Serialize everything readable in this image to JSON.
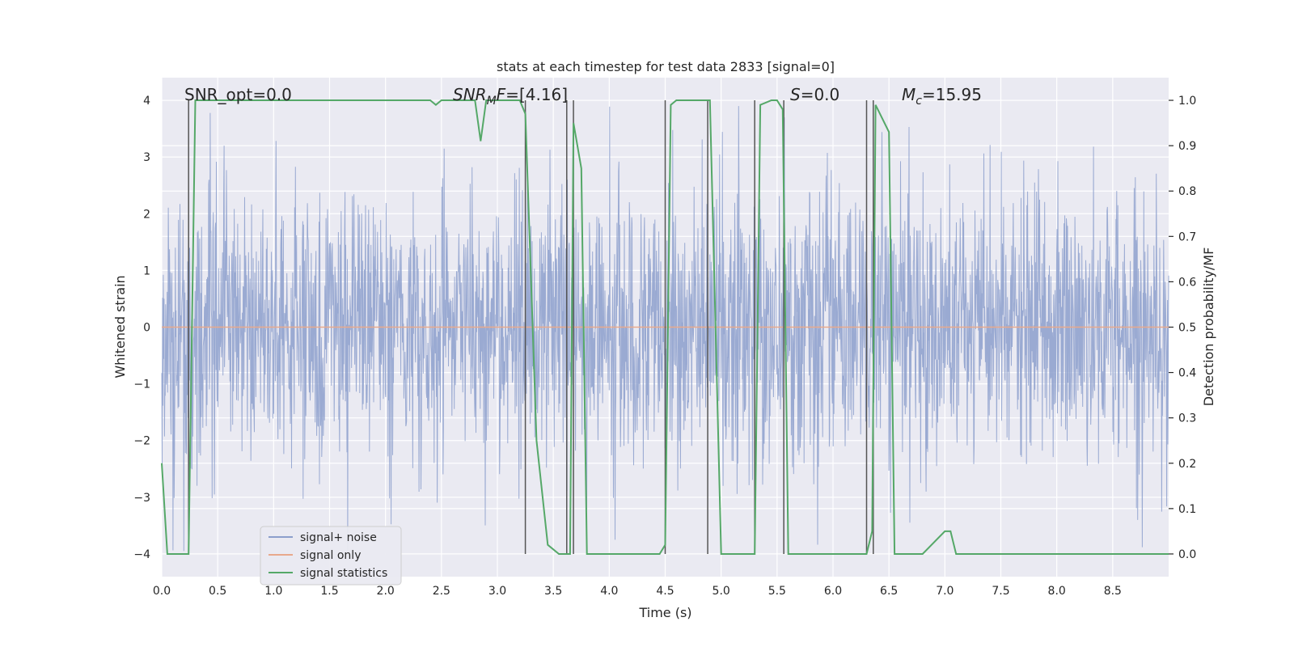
{
  "chart_data": {
    "type": "line",
    "title": "stats at each timestep for test data 2833 [signal=0]",
    "xlabel": "Time (s)",
    "ylabel_left": "Whitened strain",
    "ylabel_right": "Detection probability/MF",
    "xlim": [
      0.0,
      9.0
    ],
    "ylim_left": [
      -4.4,
      4.4
    ],
    "ylim_right": [
      -0.05,
      1.05
    ],
    "x_ticks": [
      "0.0",
      "0.5",
      "1.0",
      "1.5",
      "2.0",
      "2.5",
      "3.0",
      "3.5",
      "4.0",
      "4.5",
      "5.0",
      "5.5",
      "6.0",
      "6.5",
      "7.0",
      "7.5",
      "8.0",
      "8.5"
    ],
    "y_left_ticks": [
      "−4",
      "−3",
      "−2",
      "−1",
      "0",
      "1",
      "2",
      "3",
      "4"
    ],
    "y_right_ticks": [
      "0.0",
      "0.1",
      "0.2",
      "0.3",
      "0.4",
      "0.5",
      "0.6",
      "0.7",
      "0.8",
      "0.9",
      "1.0"
    ],
    "grid": true,
    "annotations": {
      "snr_opt": "SNR_opt=0.0",
      "snr_mf": "[4.16]",
      "s_val": "=0.0",
      "mc_val": "=15.95"
    },
    "legend": {
      "position": "lower-left",
      "entries": [
        {
          "label": "signal+ noise",
          "color": "#8c9fcc"
        },
        {
          "label": "signal only",
          "color": "#e8a98c"
        },
        {
          "label": "signal statistics",
          "color": "#55a868"
        }
      ]
    },
    "series": [
      {
        "name": "signal+ noise",
        "note": "whitened noise, typical amplitude about ±2.5, peaks near ±3.9"
      },
      {
        "name": "signal only",
        "values": "flat at 0"
      },
      {
        "name": "signal statistics",
        "x": [
          0.0,
          0.05,
          0.15,
          0.24,
          0.3,
          0.4,
          1.0,
          2.0,
          2.4,
          2.45,
          2.5,
          2.6,
          2.8,
          2.85,
          2.9,
          3.0,
          3.2,
          3.25,
          3.35,
          3.45,
          3.55,
          3.62,
          3.65,
          3.68,
          3.75,
          3.8,
          4.0,
          4.45,
          4.5,
          4.55,
          4.6,
          4.9,
          5.0,
          5.3,
          5.35,
          5.45,
          5.5,
          5.55,
          5.6,
          5.7,
          6.0,
          6.3,
          6.35,
          6.38,
          6.5,
          6.55,
          6.6,
          6.8,
          7.0,
          7.05,
          7.1,
          7.5,
          8.0,
          8.5,
          8.9,
          9.0
        ],
        "values": [
          0.2,
          0.0,
          0.0,
          0.0,
          1.0,
          1.0,
          1.0,
          1.0,
          1.0,
          0.99,
          1.0,
          1.0,
          1.0,
          0.91,
          1.0,
          1.0,
          1.0,
          0.97,
          0.25,
          0.02,
          0.0,
          0.0,
          0.0,
          0.95,
          0.85,
          0.0,
          0.0,
          0.0,
          0.02,
          0.99,
          1.0,
          1.0,
          0.0,
          0.0,
          0.99,
          1.0,
          1.0,
          0.98,
          0.0,
          0.0,
          0.0,
          0.0,
          0.05,
          0.99,
          0.93,
          0.0,
          0.0,
          0.0,
          0.05,
          0.05,
          0.0,
          0.0,
          0.0,
          0.0,
          0.0,
          0.0
        ]
      }
    ],
    "vertical_markers": [
      0.24,
      3.25,
      3.62,
      3.68,
      4.5,
      4.88,
      5.3,
      5.56,
      6.3,
      6.36
    ]
  }
}
